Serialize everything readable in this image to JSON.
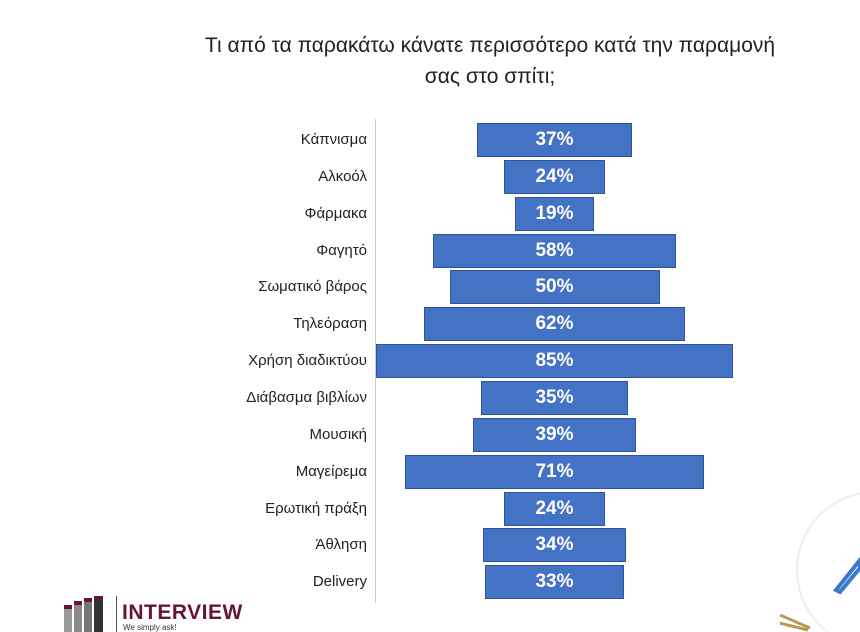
{
  "chart_data": {
    "type": "bar",
    "orientation": "horizontal-centered",
    "title": "Τι από τα παρακάτω κάνατε περισσότερο κατά την παραμονή σας στο σπίτι;",
    "title_lines": [
      "Τι από τα παρακάτω κάνατε περισσότερο κατά την παραμονή",
      "σας στο σπίτι;"
    ],
    "categories": [
      "Κάπνισμα",
      "Αλκοόλ",
      "Φάρμακα",
      "Φαγητό",
      "Σωματικό βάρος",
      "Τηλεόραση",
      "Χρήση διαδικτύου",
      "Διάβασμα βιβλίων",
      "Μουσική",
      "Μαγείρεμα",
      "Ερωτική πράξη",
      "Άθληση",
      "Delivery"
    ],
    "values": [
      37,
      24,
      19,
      58,
      50,
      62,
      85,
      35,
      39,
      71,
      24,
      34,
      33
    ],
    "value_suffix": "%",
    "xlim": [
      0,
      100
    ],
    "bar_color": "#4472c4",
    "grid": false
  },
  "logo": {
    "name": "INTERVIEW",
    "tagline": "We simply ask!",
    "color": "#6b1430"
  }
}
